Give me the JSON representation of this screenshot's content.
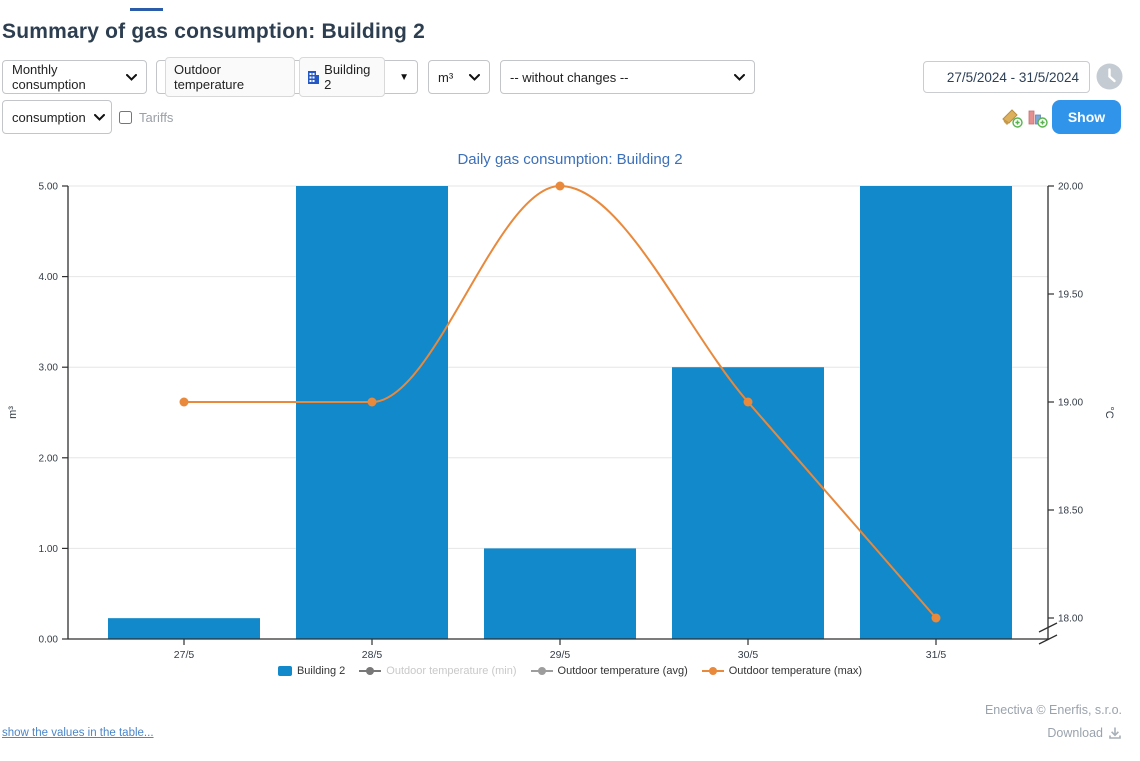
{
  "page": {
    "title": "Summary of gas consumption: Building 2"
  },
  "toolbar": {
    "period_select": "Monthly consumption",
    "series_filter": {
      "tag1": "Outdoor temperature",
      "tag2": "Building 2"
    },
    "unit_select": "m³",
    "changes_select": "-- without changes --",
    "date_range": "27/5/2024 - 31/5/2024",
    "metric_select": "consumption",
    "tariffs_label": "Tariffs",
    "tariffs_checked": false,
    "show_button": "Show"
  },
  "chart_data": {
    "type": "combo-bar-line",
    "title": "Daily gas consumption: Building 2",
    "categories": [
      "27/5",
      "28/5",
      "29/5",
      "30/5",
      "31/5"
    ],
    "series": [
      {
        "name": "Building 2",
        "type": "bar",
        "axis": "left",
        "color": "#1189ca",
        "visible": true,
        "values": [
          0.23,
          5.0,
          1.0,
          3.0,
          5.0
        ]
      },
      {
        "name": "Outdoor temperature (min)",
        "type": "line",
        "axis": "right",
        "color": "#787878",
        "visible": false,
        "values": null
      },
      {
        "name": "Outdoor temperature (avg)",
        "type": "line",
        "axis": "right",
        "color": "#9d9d9d",
        "visible": true,
        "values": null
      },
      {
        "name": "Outdoor temperature (max)",
        "type": "line",
        "axis": "right",
        "color": "#e8893c",
        "visible": true,
        "values": [
          19.0,
          19.0,
          20.0,
          19.0,
          18.0
        ]
      }
    ],
    "left_axis": {
      "title": "m³",
      "min": 0,
      "max": 5,
      "tick_values": [
        0,
        1,
        2,
        3,
        4,
        5
      ],
      "tick_labels": [
        "0.00",
        "1.00",
        "2.00",
        "3.00",
        "4.00",
        "5.00"
      ]
    },
    "right_axis": {
      "title": "°C",
      "min": 18,
      "max": 20,
      "tick_values": [
        18,
        18.5,
        19,
        19.5,
        20
      ],
      "tick_labels": [
        "18.00",
        "18.50",
        "19.00",
        "19.50",
        "20.00"
      ],
      "axis_break": true
    },
    "legend_position": "bottom",
    "grid": "horizontal"
  },
  "footer": {
    "table_link": "show the values in the table...",
    "copyright": "Enectiva © Enerfis, s.r.o.",
    "download_label": "Download"
  }
}
